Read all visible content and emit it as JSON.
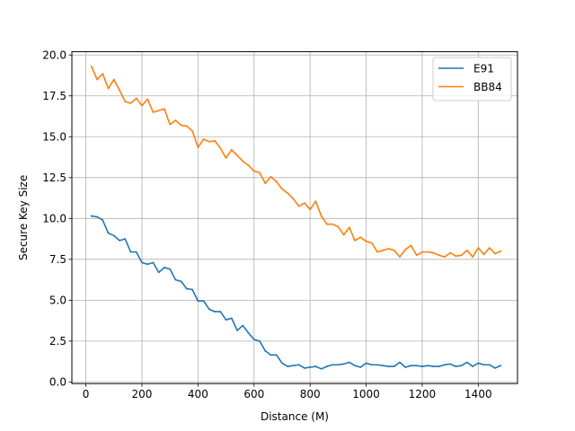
{
  "chart_data": {
    "type": "line",
    "title": "",
    "xlabel": "Distance (M)",
    "ylabel": "Secure Key Size",
    "xlim": [
      -50,
      1540
    ],
    "ylim": [
      -0.1,
      20.2
    ],
    "x_ticks": [
      0,
      200,
      400,
      600,
      800,
      1000,
      1200,
      1400
    ],
    "y_ticks": [
      0.0,
      2.5,
      5.0,
      7.5,
      10.0,
      12.5,
      15.0,
      17.5,
      20.0
    ],
    "x_tick_labels": [
      "0",
      "200",
      "400",
      "600",
      "800",
      "1000",
      "1200",
      "1400"
    ],
    "y_tick_labels": [
      "0.0",
      "2.5",
      "5.0",
      "7.5",
      "10.0",
      "12.5",
      "15.0",
      "17.5",
      "20.0"
    ],
    "grid": true,
    "legend_position": "top-right",
    "x": [
      20,
      40,
      60,
      80,
      100,
      120,
      140,
      160,
      180,
      200,
      220,
      240,
      260,
      280,
      300,
      320,
      340,
      360,
      380,
      400,
      420,
      440,
      460,
      480,
      500,
      520,
      540,
      560,
      580,
      600,
      620,
      640,
      660,
      680,
      700,
      720,
      740,
      760,
      780,
      800,
      820,
      840,
      860,
      880,
      900,
      920,
      940,
      960,
      980,
      1000,
      1020,
      1040,
      1060,
      1080,
      1100,
      1120,
      1140,
      1160,
      1180,
      1200,
      1220,
      1240,
      1260,
      1280,
      1300,
      1320,
      1340,
      1360,
      1380,
      1400,
      1420,
      1440,
      1460,
      1480
    ],
    "series": [
      {
        "name": "E91",
        "color": "#1f77b4",
        "values": [
          10.15,
          10.1,
          9.9,
          9.1,
          8.95,
          8.65,
          8.75,
          7.95,
          7.95,
          7.3,
          7.2,
          7.3,
          6.7,
          7.0,
          6.9,
          6.25,
          6.15,
          5.7,
          5.65,
          4.95,
          4.95,
          4.45,
          4.3,
          4.3,
          3.8,
          3.9,
          3.15,
          3.45,
          3.0,
          2.6,
          2.5,
          1.9,
          1.65,
          1.65,
          1.15,
          0.95,
          1.0,
          1.05,
          0.85,
          0.9,
          0.95,
          0.8,
          0.95,
          1.05,
          1.05,
          1.1,
          1.2,
          1.0,
          0.9,
          1.15,
          1.05,
          1.05,
          1.0,
          0.95,
          0.95,
          1.2,
          0.9,
          1.0,
          1.0,
          0.95,
          1.0,
          0.95,
          0.95,
          1.05,
          1.1,
          0.95,
          1.0,
          1.2,
          0.95,
          1.15,
          1.05,
          1.05,
          0.85,
          1.0
        ]
      },
      {
        "name": "BB84",
        "color": "#ff7f0e",
        "values": [
          19.3,
          18.5,
          18.85,
          17.95,
          18.5,
          17.85,
          17.15,
          17.05,
          17.35,
          16.9,
          17.3,
          16.5,
          16.6,
          16.7,
          15.75,
          16.0,
          15.7,
          15.65,
          15.35,
          14.35,
          14.85,
          14.7,
          14.75,
          14.3,
          13.7,
          14.2,
          13.85,
          13.5,
          13.25,
          12.9,
          12.8,
          12.15,
          12.55,
          12.25,
          11.8,
          11.55,
          11.2,
          10.75,
          10.95,
          10.55,
          11.05,
          10.15,
          9.65,
          9.65,
          9.5,
          9.0,
          9.45,
          8.65,
          8.85,
          8.6,
          8.5,
          7.95,
          8.05,
          8.15,
          8.05,
          7.65,
          8.1,
          8.35,
          7.75,
          7.95,
          7.95,
          7.9,
          7.75,
          7.65,
          7.9,
          7.7,
          7.75,
          8.05,
          7.65,
          8.2,
          7.8,
          8.2,
          7.85,
          8.0
        ]
      }
    ]
  }
}
